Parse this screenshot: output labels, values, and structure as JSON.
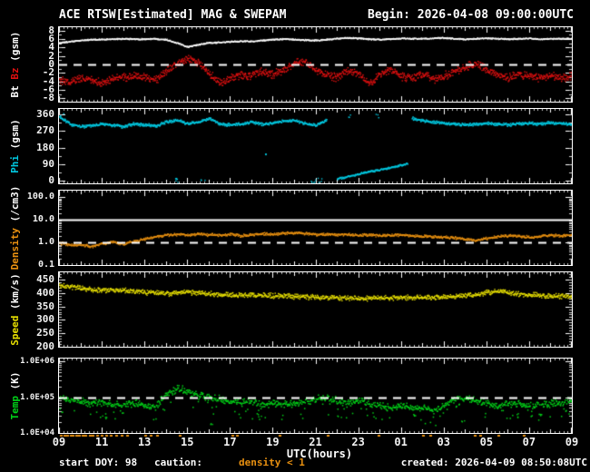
{
  "header": {
    "title": "ACE RTSW[Estimated] MAG & SWEPAM",
    "begin": "Begin: 2026-04-08 09:00:00UTC"
  },
  "footer": {
    "start_doy": "start DOY: 98",
    "caution_label": "caution:",
    "caution_value": "density < 1",
    "created": "created: 2026-04-09 08:50:08UTC"
  },
  "colors": {
    "background": "#000000",
    "axis": "#ffffff",
    "tick": "#cfcfcf",
    "bt_white": "#ffffff",
    "bz_red": "#e01010",
    "phi_cyan": "#00c8e0",
    "density_orange": "#e89010",
    "speed_yellow": "#e8e000",
    "temp_green": "#00d018",
    "caution_orange": "#e89010"
  },
  "x_axis": {
    "label": "UTC(hours)",
    "tick_labels": [
      "09",
      "11",
      "13",
      "15",
      "17",
      "19",
      "21",
      "23",
      "01",
      "03",
      "05",
      "07",
      "09"
    ],
    "tick_hours": [
      0,
      2,
      4,
      6,
      8,
      10,
      12,
      14,
      16,
      18,
      20,
      22,
      24
    ],
    "range_hours": [
      0,
      24
    ]
  },
  "caution_marks_hours": [
    0.05,
    0.2,
    0.35,
    0.5,
    0.6,
    0.75,
    0.9,
    1.05,
    1.2,
    1.4,
    1.55,
    1.75,
    1.95,
    2.15,
    2.4,
    2.65,
    2.9,
    3.15,
    4.0,
    4.25,
    4.55,
    5.6,
    8.05,
    8.3,
    10.3,
    12.55,
    14.9,
    17.0,
    17.35,
    19.4,
    19.65,
    20.5,
    21.7
  ],
  "sample_hours": [
    0,
    0.5,
    1,
    1.5,
    2,
    2.5,
    3,
    3.5,
    4,
    4.5,
    5,
    5.5,
    6,
    6.5,
    7,
    7.5,
    8,
    8.5,
    9,
    9.5,
    10,
    10.5,
    11,
    11.5,
    12,
    12.5,
    13,
    13.5,
    14,
    14.5,
    15,
    15.5,
    16,
    16.5,
    17,
    17.5,
    18,
    18.5,
    19,
    19.5,
    20,
    20.5,
    21,
    21.5,
    22,
    22.5,
    23,
    23.5,
    24
  ],
  "chart_data": [
    {
      "type": "scatter",
      "id": "mag",
      "title": "Bt and Bz GSM magnetic field",
      "scale": "linear",
      "ylim": [
        -8.8,
        8.8
      ],
      "yticks": [
        {
          "v": 8,
          "label": "8"
        },
        {
          "v": 6,
          "label": "6"
        },
        {
          "v": 4,
          "label": "4"
        },
        {
          "v": 2,
          "label": "2"
        },
        {
          "v": 0,
          "label": "0"
        },
        {
          "v": -2,
          "label": "-2"
        },
        {
          "v": -4,
          "label": "-4"
        },
        {
          "v": -6,
          "label": "-6"
        },
        {
          "v": -8,
          "label": "-8"
        }
      ],
      "yminor_step": 1,
      "ylabel_parts": [
        {
          "text": "Bt ",
          "color": "#ffffff"
        },
        {
          "text": "Bz",
          "color": "#e01010"
        },
        {
          "text": " (gsm)",
          "color": "#ffffff"
        }
      ],
      "ref_lines": [
        {
          "v": 0,
          "style": "dashed"
        }
      ],
      "series": [
        {
          "name": "Bt",
          "color": "#ffffff",
          "jitter": 0.12,
          "dots_per_hour": 60,
          "dot": 1.3,
          "values": [
            5.2,
            5.5,
            5.8,
            6.0,
            6.0,
            6.1,
            6.2,
            6.1,
            6.1,
            6.2,
            6.0,
            5.2,
            4.3,
            4.8,
            5.2,
            5.3,
            5.5,
            5.6,
            5.6,
            5.8,
            6.0,
            6.1,
            6.0,
            5.9,
            5.8,
            6.0,
            6.2,
            6.4,
            6.3,
            6.1,
            6.0,
            6.1,
            6.3,
            6.2,
            6.2,
            6.3,
            6.4,
            6.2,
            6.1,
            6.2,
            6.3,
            6.2,
            6.1,
            6.2,
            6.3,
            6.1,
            6.2,
            6.2,
            6.2
          ]
        },
        {
          "name": "Bz",
          "color": "#e01010",
          "jitter": 0.7,
          "dots_per_hour": 55,
          "dot": 1.4,
          "values": [
            -3.5,
            -4.0,
            -3.2,
            -3.6,
            -4.4,
            -3.2,
            -3.0,
            -2.6,
            -3.0,
            -3.6,
            -1.5,
            0.5,
            1.5,
            0.5,
            -2.0,
            -4.2,
            -3.2,
            -2.2,
            -2.6,
            -1.6,
            -2.2,
            -1.2,
            0.4,
            0.8,
            -1.2,
            -2.4,
            -3.0,
            -1.4,
            -2.2,
            -4.4,
            -2.2,
            -1.2,
            -2.6,
            -3.2,
            -2.0,
            -3.4,
            -2.6,
            -1.4,
            -0.6,
            0.4,
            -1.2,
            -2.2,
            -3.0,
            -2.2,
            -2.6,
            -3.0,
            -2.4,
            -3.2,
            -2.6
          ]
        }
      ]
    },
    {
      "type": "scatter",
      "id": "phi",
      "title": "Phi GSM angle",
      "scale": "linear",
      "ylim": [
        -15,
        390
      ],
      "yticks": [
        {
          "v": 360,
          "label": "360"
        },
        {
          "v": 270,
          "label": "270"
        },
        {
          "v": 180,
          "label": "180"
        },
        {
          "v": 90,
          "label": "90"
        },
        {
          "v": 0,
          "label": "0"
        }
      ],
      "yminor_step": 45,
      "ylabel_parts": [
        {
          "text": "Phi",
          "color": "#00c8e0"
        },
        {
          "text": " (gsm)",
          "color": "#ffffff"
        }
      ],
      "ref_lines": [],
      "series": [
        {
          "name": "Phi",
          "color": "#00c8e0",
          "jitter": 6,
          "dots_per_hour": 50,
          "dot": 1.5,
          "values": [
            348,
            310,
            296,
            302,
            312,
            304,
            298,
            312,
            306,
            300,
            322,
            332,
            312,
            322,
            342,
            312,
            306,
            312,
            322,
            310,
            316,
            326,
            332,
            314,
            304,
            330,
            null,
            null,
            null,
            null,
            null,
            null,
            null,
            342,
            330,
            322,
            316,
            310,
            306,
            310,
            316,
            310,
            306,
            312,
            316,
            310,
            320,
            314,
            310
          ]
        },
        {
          "name": "Phi-low-branch",
          "color": "#00c8e0",
          "jitter": 4,
          "dots_per_hour": 45,
          "dot": 1.5,
          "x": [
            13.0,
            13.4,
            13.8,
            14.2,
            14.6,
            15.0,
            15.4,
            15.8,
            16.1,
            16.3
          ],
          "values": [
            12,
            22,
            32,
            44,
            54,
            62,
            72,
            82,
            90,
            96
          ]
        },
        {
          "name": "Phi-scatter",
          "color": "#00c8e0",
          "points": [
            [
              0.1,
              356
            ],
            [
              5.4,
              8
            ],
            [
              5.5,
              3
            ],
            [
              6.7,
              6
            ],
            [
              9.7,
              150
            ],
            [
              11.8,
              2
            ],
            [
              12.0,
              6
            ],
            [
              12.2,
              3
            ],
            [
              13.6,
              357
            ],
            [
              14.9,
              354
            ]
          ]
        }
      ]
    },
    {
      "type": "scatter",
      "id": "density",
      "title": "Proton density",
      "scale": "log",
      "ylim": [
        0.1,
        200
      ],
      "yticks": [
        {
          "v": 100,
          "label": "100.0"
        },
        {
          "v": 10,
          "label": "10.0"
        },
        {
          "v": 1,
          "label": "1.0"
        },
        {
          "v": 0.1,
          "label": "0.1"
        }
      ],
      "ylabel_parts": [
        {
          "text": "Density",
          "color": "#e89010"
        },
        {
          "text": " (/cm3)",
          "color": "#ffffff"
        }
      ],
      "ref_lines": [
        {
          "v": 10,
          "style": "solid"
        },
        {
          "v": 1,
          "style": "dashed"
        }
      ],
      "series": [
        {
          "name": "Density",
          "color": "#e89010",
          "jitter": 0.07,
          "dots_per_hour": 50,
          "dot": 1.4,
          "values": [
            1.0,
            0.8,
            0.85,
            0.7,
            0.95,
            1.1,
            0.9,
            1.2,
            1.5,
            1.9,
            2.2,
            2.4,
            2.3,
            2.5,
            2.3,
            2.2,
            2.4,
            2.1,
            2.3,
            2.6,
            2.4,
            2.7,
            2.9,
            2.6,
            2.4,
            2.5,
            2.3,
            2.4,
            2.2,
            2.3,
            2.1,
            2.2,
            2.3,
            2.1,
            2.0,
            1.9,
            1.8,
            1.7,
            1.5,
            1.3,
            1.6,
            1.9,
            2.1,
            2.0,
            1.8,
            2.0,
            2.2,
            2.1,
            2.3
          ]
        }
      ]
    },
    {
      "type": "scatter",
      "id": "speed",
      "title": "Solar wind speed",
      "scale": "linear",
      "ylim": [
        200,
        477
      ],
      "yticks": [
        {
          "v": 450,
          "label": "450"
        },
        {
          "v": 400,
          "label": "400"
        },
        {
          "v": 350,
          "label": "350"
        },
        {
          "v": 300,
          "label": "300"
        },
        {
          "v": 250,
          "label": "250"
        },
        {
          "v": 200,
          "label": "200"
        }
      ],
      "yminor_step": 10,
      "ylabel_parts": [
        {
          "text": "Speed",
          "color": "#e8e000"
        },
        {
          "text": " (km/s)",
          "color": "#ffffff"
        }
      ],
      "ref_lines": [],
      "series": [
        {
          "name": "Speed",
          "color": "#e8e000",
          "jitter": 7,
          "dots_per_hour": 55,
          "dot": 1.4,
          "values": [
            432,
            425,
            420,
            415,
            413,
            411,
            410,
            408,
            405,
            403,
            400,
            404,
            406,
            402,
            399,
            397,
            396,
            394,
            395,
            393,
            391,
            390,
            389,
            388,
            386,
            385,
            385,
            384,
            381,
            383,
            385,
            384,
            386,
            385,
            386,
            385,
            386,
            388,
            391,
            395,
            404,
            409,
            402,
            398,
            396,
            393,
            391,
            390,
            390
          ]
        }
      ]
    },
    {
      "type": "scatter",
      "id": "temp",
      "title": "Proton temperature",
      "scale": "log",
      "ylim": [
        10000,
        1200000
      ],
      "yticks": [
        {
          "v": 1000000,
          "label": "1.0E+06"
        },
        {
          "v": 100000,
          "label": "1.0E+05"
        },
        {
          "v": 10000,
          "label": "1.0E+04"
        }
      ],
      "ylabel_parts": [
        {
          "text": "Temp",
          "color": "#00d018"
        },
        {
          "text": " (K)",
          "color": "#ffffff"
        }
      ],
      "ref_lines": [
        {
          "v": 100000,
          "style": "dashed"
        }
      ],
      "series": [
        {
          "name": "Temp",
          "color": "#00d018",
          "jitter": 0.12,
          "dots_per_hour": 45,
          "dot": 1.5,
          "low_tail": 0.3,
          "values": [
            100000,
            90000,
            80000,
            70000,
            75000,
            60000,
            65000,
            70000,
            60000,
            55000,
            120000,
            180000,
            150000,
            120000,
            100000,
            90000,
            80000,
            70000,
            80000,
            60000,
            70000,
            65000,
            70000,
            80000,
            90000,
            100000,
            80000,
            70000,
            90000,
            70000,
            60000,
            50000,
            60000,
            55000,
            50000,
            45000,
            60000,
            90000,
            100000,
            80000,
            70000,
            60000,
            65000,
            70000,
            60000,
            65000,
            70000,
            75000,
            80000
          ]
        },
        {
          "name": "Temp-outliers",
          "color": "#00d018",
          "points": [
            [
              2.1,
              28000
            ],
            [
              7.1,
              20000
            ],
            [
              9.4,
              30000
            ],
            [
              13.1,
              27000
            ],
            [
              16.6,
              30000
            ],
            [
              18.9,
              24000
            ],
            [
              21.5,
              32000
            ]
          ]
        }
      ]
    }
  ]
}
